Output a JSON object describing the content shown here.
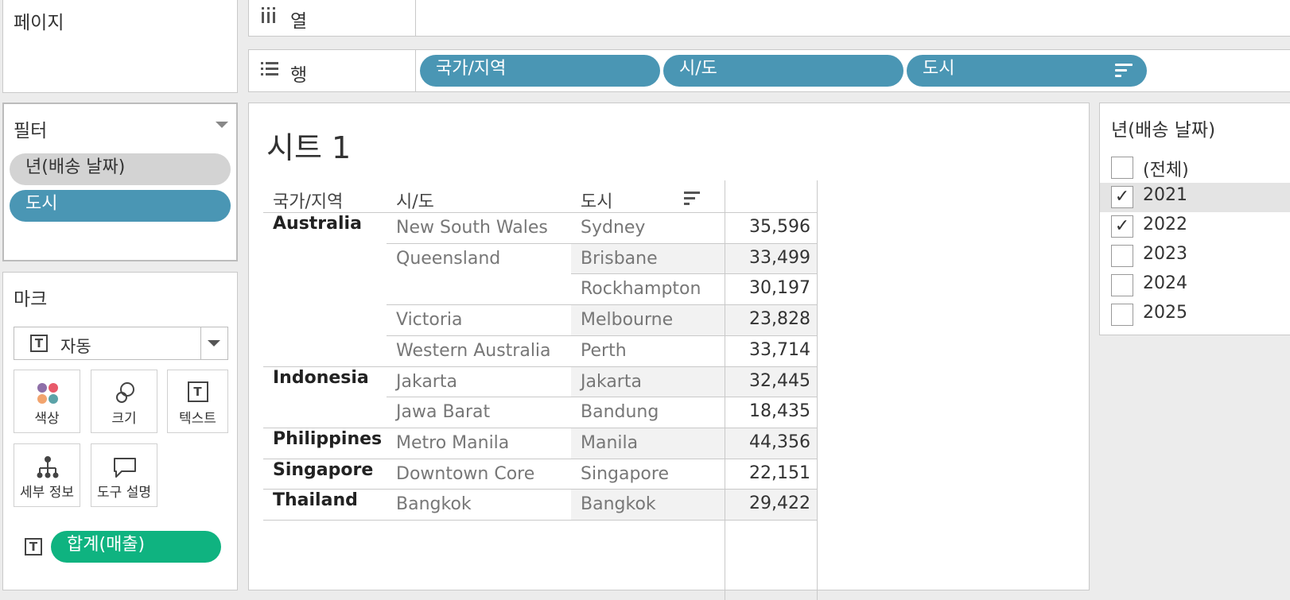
{
  "pages": {
    "title": "페이지"
  },
  "shelves": {
    "columns": {
      "label": "열",
      "icon": "columns-icon"
    },
    "rows": {
      "label": "행",
      "icon": "rows-icon",
      "pills": [
        "국가/지역",
        "시/도",
        "도시"
      ]
    }
  },
  "filters": {
    "title": "필터",
    "items": [
      "년(배송 날짜)",
      "도시"
    ]
  },
  "marks": {
    "title": "마크",
    "type": "자동",
    "buttons": {
      "color": "색상",
      "size": "크기",
      "text": "텍스트",
      "detail": "세부 정보",
      "tooltip": "도구 설명"
    },
    "text_pill": "합계(매출)"
  },
  "sheet": {
    "title": "시트 1",
    "headers": {
      "country": "국가/지역",
      "state": "시/도",
      "city": "도시"
    },
    "rows": [
      {
        "country": "Australia",
        "state": "New South Wales",
        "city": "Sydney",
        "value": "35,596"
      },
      {
        "country": "",
        "state": "Queensland",
        "city": "Brisbane",
        "value": "33,499"
      },
      {
        "country": "",
        "state": "",
        "city": "Rockhampton",
        "value": "30,197"
      },
      {
        "country": "",
        "state": "Victoria",
        "city": "Melbourne",
        "value": "23,828"
      },
      {
        "country": "",
        "state": "Western Australia",
        "city": "Perth",
        "value": "33,714"
      },
      {
        "country": "Indonesia",
        "state": "Jakarta",
        "city": "Jakarta",
        "value": "32,445"
      },
      {
        "country": "",
        "state": "Jawa Barat",
        "city": "Bandung",
        "value": "18,435"
      },
      {
        "country": "Philippines",
        "state": "Metro Manila",
        "city": "Manila",
        "value": "44,356"
      },
      {
        "country": "Singapore",
        "state": "Downtown Core",
        "city": "Singapore",
        "value": "22,151"
      },
      {
        "country": "Thailand",
        "state": "Bangkok",
        "city": "Bangkok",
        "value": "29,422"
      }
    ]
  },
  "year_filter": {
    "title": "년(배송 날짜)",
    "options": [
      {
        "label": "(전체)",
        "checked": false
      },
      {
        "label": "2021",
        "checked": true
      },
      {
        "label": "2022",
        "checked": true
      },
      {
        "label": "2023",
        "checked": false
      },
      {
        "label": "2024",
        "checked": false
      },
      {
        "label": "2025",
        "checked": false
      }
    ]
  },
  "colors": {
    "dimension_pill": "#4a96b4",
    "measure_pill": "#0fb380",
    "filter_pill": "#d3d3d3"
  }
}
